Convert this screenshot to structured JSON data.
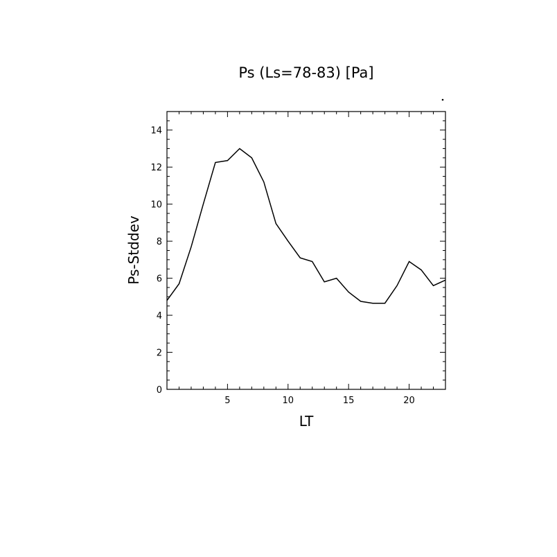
{
  "chart_data": {
    "type": "line",
    "title": "Ps (Ls=78-83) [Pa]",
    "xlabel": "LT",
    "ylabel": "Ps-Stddev",
    "xlim": [
      0,
      23
    ],
    "ylim": [
      0,
      15
    ],
    "xticks": [
      5,
      10,
      15,
      20
    ],
    "yticks": [
      0,
      2,
      4,
      6,
      8,
      10,
      12,
      14
    ],
    "grid": false,
    "series": [
      {
        "x": [
          0,
          1,
          2,
          3,
          4,
          5,
          6,
          7,
          8,
          9,
          10,
          11,
          12,
          13,
          14,
          15,
          16,
          17,
          18,
          19,
          20,
          21,
          22,
          23
        ],
        "values": [
          4.8,
          5.7,
          7.7,
          10.0,
          12.25,
          12.35,
          13.0,
          12.5,
          11.2,
          8.95,
          8.0,
          7.1,
          6.9,
          5.8,
          6.0,
          5.25,
          4.75,
          4.65,
          4.65,
          5.6,
          6.9,
          6.45,
          5.6,
          5.9
        ]
      }
    ],
    "line_color": "#000000"
  }
}
